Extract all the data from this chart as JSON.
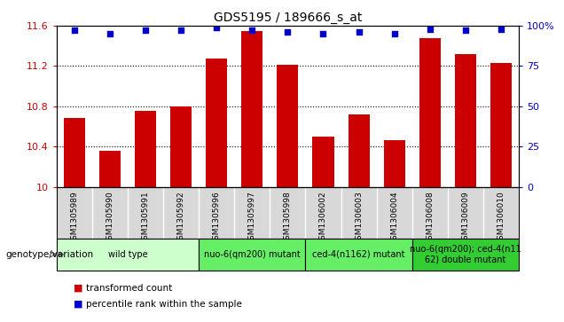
{
  "title": "GDS5195 / 189666_s_at",
  "samples": [
    "GSM1305989",
    "GSM1305990",
    "GSM1305991",
    "GSM1305992",
    "GSM1305996",
    "GSM1305997",
    "GSM1305998",
    "GSM1306002",
    "GSM1306003",
    "GSM1306004",
    "GSM1306008",
    "GSM1306009",
    "GSM1306010"
  ],
  "bar_values": [
    10.68,
    10.36,
    10.75,
    10.8,
    11.27,
    11.55,
    11.21,
    10.5,
    10.72,
    10.46,
    11.48,
    11.32,
    11.23
  ],
  "percentile_values": [
    97,
    95,
    97,
    97,
    99,
    97,
    96,
    95,
    96,
    95,
    98,
    97,
    98
  ],
  "bar_color": "#cc0000",
  "dot_color": "#0000cc",
  "ylim_left": [
    10,
    11.6
  ],
  "ylim_right": [
    0,
    100
  ],
  "yticks_left": [
    10,
    10.4,
    10.8,
    11.2,
    11.6
  ],
  "ytick_labels_left": [
    "10",
    "10.4",
    "10.8",
    "11.2",
    "11.6"
  ],
  "yticks_right": [
    0,
    25,
    50,
    75,
    100
  ],
  "ytick_labels_right": [
    "0",
    "25",
    "50",
    "75",
    "100%"
  ],
  "groups": [
    {
      "label": "wild type",
      "start": 0,
      "end": 3,
      "color": "#ccffcc"
    },
    {
      "label": "nuo-6(qm200) mutant",
      "start": 4,
      "end": 6,
      "color": "#66ee66"
    },
    {
      "label": "ced-4(n1162) mutant",
      "start": 7,
      "end": 9,
      "color": "#66ee66"
    },
    {
      "label": "nuo-6(qm200); ced-4(n11\n62) double mutant",
      "start": 10,
      "end": 12,
      "color": "#33cc33"
    }
  ],
  "genotype_label": "genotype/variation",
  "legend_items": [
    {
      "color": "#cc0000",
      "label": "transformed count"
    },
    {
      "color": "#0000cc",
      "label": "percentile rank within the sample"
    }
  ],
  "background_color": "#ffffff",
  "plot_bg_color": "#ffffff",
  "tick_label_bg": "#d8d8d8",
  "bar_width": 0.6,
  "xlabel_rotation": 90
}
